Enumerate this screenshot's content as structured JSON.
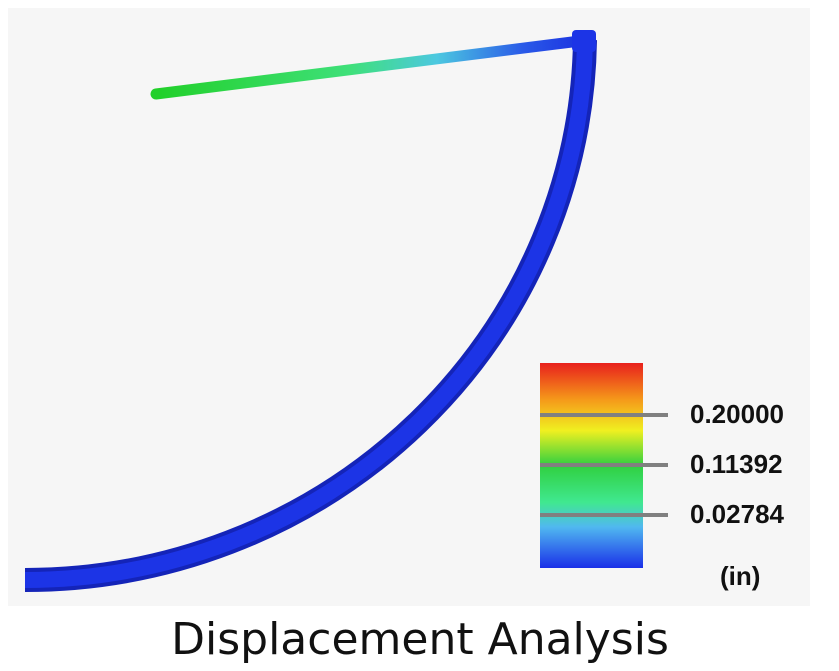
{
  "legend": {
    "labels": [
      "0.20000",
      "0.11392",
      "0.02784"
    ],
    "unit": "(in)"
  },
  "caption": "Displacement Analysis"
}
